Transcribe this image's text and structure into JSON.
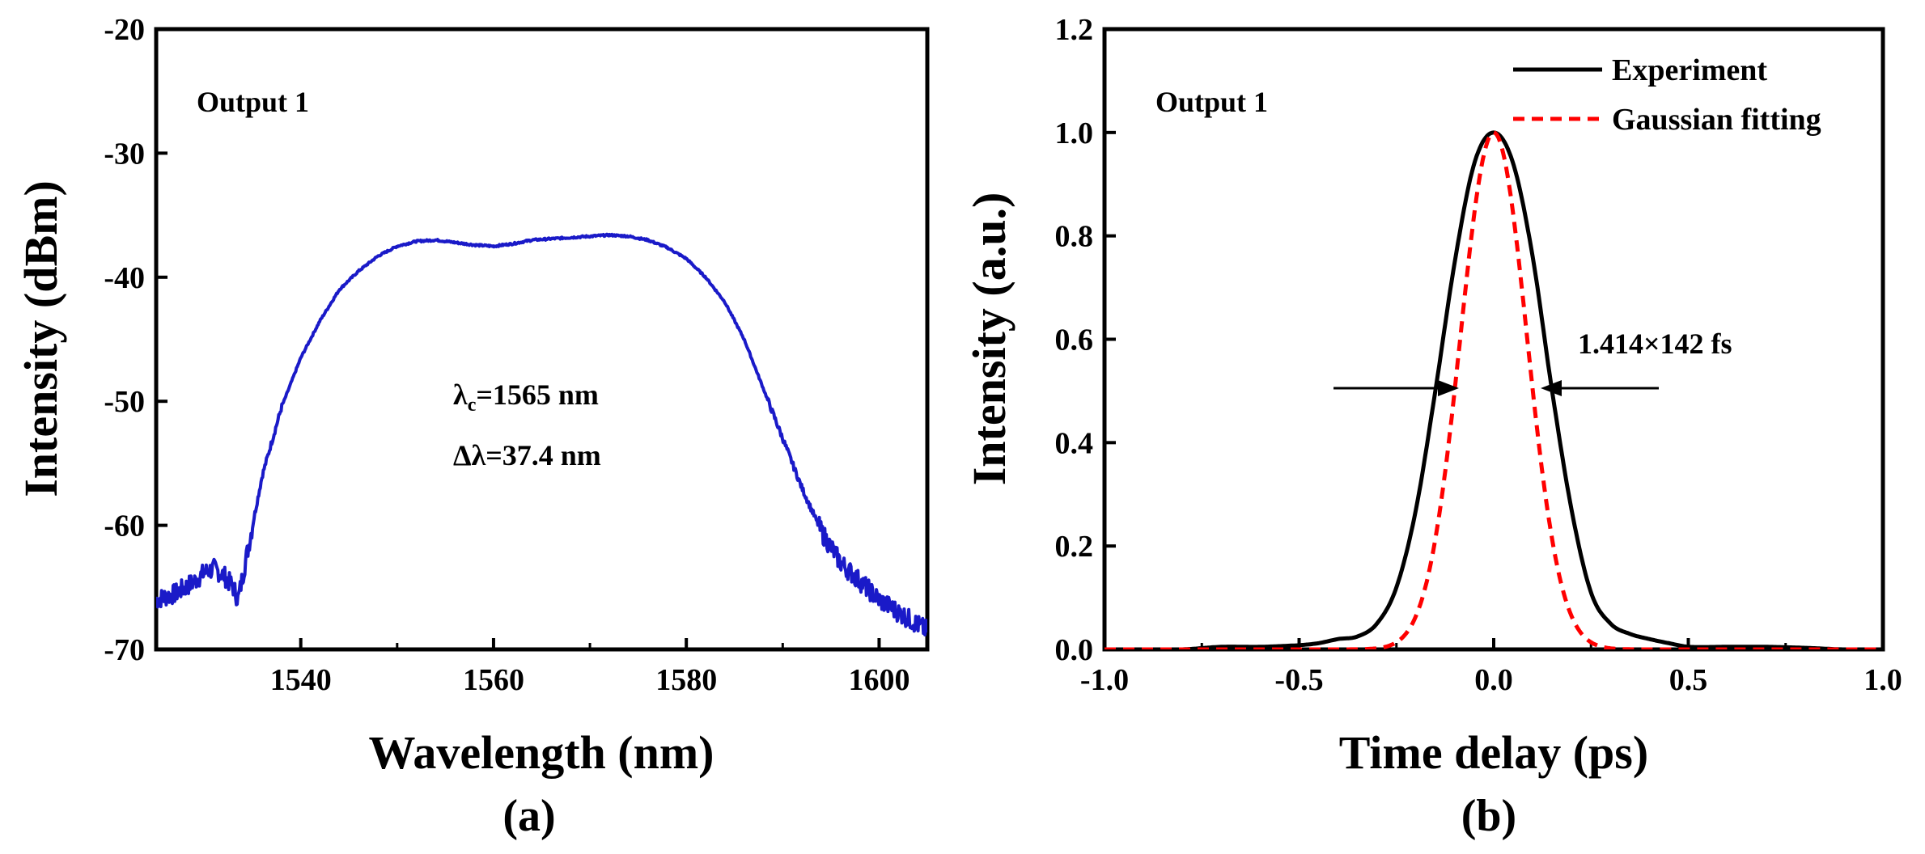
{
  "chart_data": [
    {
      "type": "line",
      "panel_label": "(a)",
      "xlabel": "Wavelength (nm)",
      "ylabel": "Intensity (dBm)",
      "xlim": [
        1525,
        1605
      ],
      "ylim": [
        -70,
        -20
      ],
      "xticks": [
        1540,
        1560,
        1580,
        1600
      ],
      "yticks": [
        -20,
        -30,
        -40,
        -50,
        -60,
        -70
      ],
      "grid": false,
      "color": "#1a1ac8",
      "annotations": {
        "output": "Output 1",
        "lambda_symbol": "λ",
        "lambda_sub": "c",
        "lambda_value": "=1565 nm",
        "bandwidth": "Δλ=37.4 nm"
      },
      "series": [
        {
          "x": [
            1525,
            1527,
            1529,
            1530,
            1531,
            1532,
            1533,
            1533.5,
            1534,
            1535,
            1536,
            1538,
            1540,
            1542,
            1544,
            1546,
            1548,
            1550,
            1552,
            1554,
            1556,
            1558,
            1560,
            1562,
            1564,
            1566,
            1568,
            1570,
            1572,
            1574,
            1576,
            1578,
            1580,
            1582,
            1584,
            1586,
            1588,
            1590,
            1592,
            1594,
            1596,
            1598,
            1600,
            1602,
            1604,
            1605
          ],
          "y": [
            -66,
            -65.5,
            -64.5,
            -63.8,
            -63.5,
            -64,
            -65,
            -66,
            -64,
            -60,
            -56,
            -50.5,
            -46.5,
            -43.5,
            -41,
            -39.5,
            -38.3,
            -37.5,
            -37.1,
            -37,
            -37.2,
            -37.4,
            -37.5,
            -37.3,
            -37,
            -36.9,
            -36.8,
            -36.7,
            -36.6,
            -36.7,
            -37,
            -37.6,
            -38.5,
            -40,
            -42,
            -45,
            -49,
            -53,
            -57,
            -60.5,
            -63,
            -64.5,
            -66,
            -67,
            -68,
            -68.5
          ]
        }
      ]
    },
    {
      "type": "line",
      "panel_label": "(b)",
      "xlabel": "Time delay (ps)",
      "ylabel": "Intensity (a.u.)",
      "xlim": [
        -1.0,
        1.0
      ],
      "ylim": [
        0.0,
        1.2
      ],
      "xticks": [
        "-1.0",
        "-0.5",
        "0.0",
        "0.5",
        "1.0"
      ],
      "yticks": [
        "0.0",
        "0.2",
        "0.4",
        "0.6",
        "0.8",
        "1.0",
        "1.2"
      ],
      "grid": false,
      "legend_position": "top-right",
      "annotations": {
        "output": "Output 1",
        "fwhm": "1.414×142 fs"
      },
      "series": [
        {
          "name": "Experiment",
          "color": "#000000",
          "style": "solid",
          "x": [
            -1.0,
            -0.9,
            -0.8,
            -0.7,
            -0.6,
            -0.5,
            -0.45,
            -0.4,
            -0.35,
            -0.3,
            -0.25,
            -0.2,
            -0.15,
            -0.1,
            -0.05,
            0.0,
            0.05,
            0.1,
            0.15,
            0.2,
            0.25,
            0.3,
            0.35,
            0.4,
            0.45,
            0.5,
            0.6,
            0.7,
            0.8,
            0.9,
            1.0
          ],
          "y": [
            0.0,
            0.0,
            0.0,
            0.005,
            0.005,
            0.008,
            0.012,
            0.02,
            0.025,
            0.05,
            0.12,
            0.27,
            0.5,
            0.75,
            0.94,
            1.0,
            0.94,
            0.76,
            0.5,
            0.27,
            0.11,
            0.05,
            0.03,
            0.02,
            0.012,
            0.005,
            0.005,
            0.005,
            0.003,
            0.0,
            0.0
          ]
        },
        {
          "name": "Gaussian fitting",
          "color": "#ff0000",
          "style": "dashed",
          "fwhm_ps": 0.201
        }
      ]
    }
  ]
}
